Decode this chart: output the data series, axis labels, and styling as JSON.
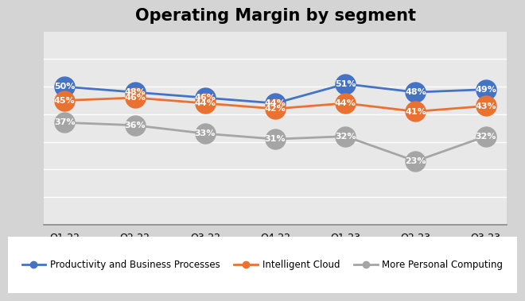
{
  "title": "Operating Margin by segment",
  "categories": [
    "Q1-22",
    "Q2-22",
    "Q3-22",
    "Q4-22",
    "Q1-23",
    "Q2-23",
    "Q3-23"
  ],
  "series": [
    {
      "name": "Productivity and Business Processes",
      "values": [
        50,
        48,
        46,
        44,
        51,
        48,
        49
      ],
      "color": "#4472C4",
      "marker": "o"
    },
    {
      "name": "Intelligent Cloud",
      "values": [
        45,
        46,
        44,
        42,
        44,
        41,
        43
      ],
      "color": "#E97132",
      "marker": "o"
    },
    {
      "name": "More Personal Computing",
      "values": [
        37,
        36,
        33,
        31,
        32,
        23,
        32
      ],
      "color": "#A5A5A5",
      "marker": "o"
    }
  ],
  "ylim": [
    0,
    70
  ],
  "background_color": "#D4D4D4",
  "plot_bg_color": "#E8E8E8",
  "title_fontsize": 15,
  "label_fontsize": 8,
  "legend_fontsize": 8.5,
  "tick_fontsize": 9,
  "grid_color": "#FFFFFF",
  "marker_size": 18,
  "linewidth": 2.0
}
